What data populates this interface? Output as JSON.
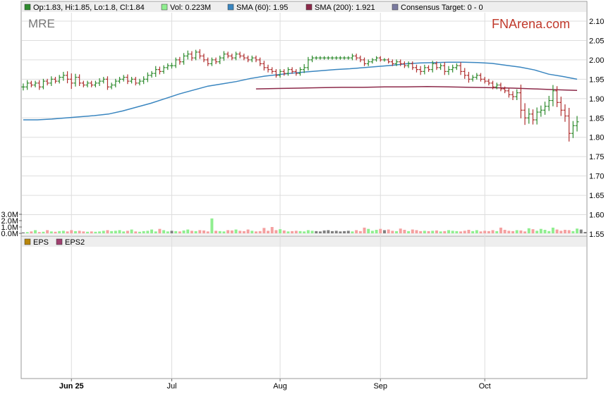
{
  "ticker": "MRE",
  "brand": "FNArena.com",
  "legend": {
    "ohlc": "Op:1.83, Hi:1.85, Lo:1.8, Cl:1.84",
    "vol": "Vol: 0.223M",
    "sma60": "SMA (60): 1.95",
    "sma200": "SMA (200): 1.921",
    "consensus": "Consensus Target: 0 - 0"
  },
  "eps_legend": [
    "EPS",
    "EPS2"
  ],
  "colors": {
    "up": "#2e8b2e",
    "down": "#b03030",
    "sma60": "#3a86c0",
    "sma200": "#8c2a4a",
    "vol_up": "#90ee90",
    "vol_down": "#f4a0a0",
    "vol_neutral": "#808080",
    "consensus": "#7a7aa0",
    "eps": "#b8860b",
    "eps2": "#a04070"
  },
  "chart_data": {
    "type": "ohlc",
    "price_axis": {
      "ticks": [
        "2.10",
        "2.05",
        "2.00",
        "1.95",
        "1.90",
        "1.85",
        "1.80",
        "1.75",
        "1.70",
        "1.65",
        "1.60",
        "1.55"
      ],
      "range": [
        1.55,
        2.1
      ]
    },
    "volume_axis": {
      "ticks": [
        "3.0M",
        "2.0M",
        "1.0M",
        "0.0M"
      ],
      "range": [
        0,
        3.0
      ],
      "unit": "M"
    },
    "x_labels": [
      {
        "label": "Jun 25",
        "index": 12,
        "bold": true
      },
      {
        "label": "Jul",
        "index": 37,
        "bold": false
      },
      {
        "label": "Aug",
        "index": 64,
        "bold": false
      },
      {
        "label": "Sep",
        "index": 89,
        "bold": false
      },
      {
        "label": "Oct",
        "index": 115,
        "bold": false
      }
    ],
    "closes": [
      1.93,
      1.94,
      1.935,
      1.94,
      1.93,
      1.945,
      1.94,
      1.95,
      1.945,
      1.955,
      1.96,
      1.95,
      1.94,
      1.955,
      1.94,
      1.935,
      1.94,
      1.935,
      1.94,
      1.945,
      1.95,
      1.93,
      1.935,
      1.945,
      1.95,
      1.955,
      1.945,
      1.95,
      1.94,
      1.945,
      1.95,
      1.96,
      1.965,
      1.975,
      1.97,
      1.98,
      1.985,
      1.985,
      2.0,
      1.995,
      2.01,
      2.015,
      2.005,
      2.02,
      2.01,
      2.0,
      1.99,
      2.0,
      1.995,
      2.005,
      2.015,
      2.01,
      2.005,
      2.015,
      2.01,
      2.005,
      2.0,
      2.005,
      2.0,
      1.99,
      1.98,
      1.975,
      1.97,
      1.96,
      1.97,
      1.965,
      1.975,
      1.97,
      1.965,
      1.975,
      1.98,
      2.0,
      2.005,
      2.005,
      2.005,
      2.005,
      2.005,
      2.005,
      2.005,
      2.005,
      2.005,
      2.005,
      2.01,
      2.005,
      2.0,
      1.99,
      1.995,
      2.0,
      2.005,
      2.0,
      2.0,
      1.995,
      1.99,
      1.995,
      1.99,
      1.985,
      1.99,
      1.98,
      1.975,
      1.97,
      1.98,
      1.975,
      1.99,
      1.98,
      1.985,
      1.97,
      1.975,
      1.98,
      1.985,
      1.97,
      1.96,
      1.95,
      1.955,
      1.96,
      1.95,
      1.945,
      1.94,
      1.93,
      1.935,
      1.925,
      1.92,
      1.91,
      1.905,
      1.915,
      1.87,
      1.85,
      1.86,
      1.845,
      1.865,
      1.87,
      1.88,
      1.895,
      1.92,
      1.89,
      1.87,
      1.855,
      1.81,
      1.83,
      1.84
    ],
    "ranges": [
      0.03,
      0.025,
      0.02,
      0.02,
      0.025,
      0.02,
      0.02,
      0.025,
      0.02,
      0.02,
      0.03,
      0.035,
      0.05,
      0.03,
      0.025,
      0.02,
      0.02,
      0.02,
      0.02,
      0.025,
      0.02,
      0.025,
      0.02,
      0.02,
      0.02,
      0.02,
      0.025,
      0.02,
      0.02,
      0.02,
      0.025,
      0.025,
      0.02,
      0.03,
      0.025,
      0.02,
      0.02,
      0.025,
      0.02,
      0.025,
      0.025,
      0.03,
      0.025,
      0.02,
      0.025,
      0.02,
      0.02,
      0.02,
      0.02,
      0.02,
      0.025,
      0.02,
      0.02,
      0.02,
      0.02,
      0.02,
      0.02,
      0.02,
      0.02,
      0.02,
      0.025,
      0.025,
      0.02,
      0.02,
      0.02,
      0.02,
      0.02,
      0.02,
      0.02,
      0.02,
      0.03,
      0.025,
      0.02,
      0.015,
      0.015,
      0.015,
      0.015,
      0.015,
      0.015,
      0.015,
      0.015,
      0.015,
      0.02,
      0.02,
      0.02,
      0.02,
      0.02,
      0.015,
      0.015,
      0.015,
      0.015,
      0.015,
      0.02,
      0.02,
      0.02,
      0.02,
      0.02,
      0.02,
      0.025,
      0.03,
      0.025,
      0.02,
      0.025,
      0.02,
      0.02,
      0.03,
      0.03,
      0.025,
      0.02,
      0.03,
      0.03,
      0.03,
      0.02,
      0.02,
      0.02,
      0.02,
      0.02,
      0.02,
      0.02,
      0.02,
      0.02,
      0.025,
      0.03,
      0.03,
      0.07,
      0.06,
      0.05,
      0.04,
      0.04,
      0.04,
      0.04,
      0.04,
      0.05,
      0.04,
      0.05,
      0.05,
      0.07,
      0.04,
      0.05
    ],
    "volumes": [
      0.15,
      0.2,
      0.3,
      0.5,
      0.2,
      0.25,
      0.5,
      0.3,
      0.25,
      0.35,
      0.4,
      0.3,
      0.5,
      0.35,
      0.4,
      0.3,
      0.25,
      0.3,
      0.25,
      0.3,
      0.4,
      0.5,
      0.35,
      0.4,
      0.5,
      0.3,
      0.4,
      0.6,
      0.3,
      0.25,
      0.35,
      0.4,
      0.6,
      0.3,
      0.7,
      0.5,
      0.3,
      0.4,
      0.35,
      0.3,
      0.45,
      0.6,
      0.4,
      0.35,
      0.5,
      0.45,
      0.3,
      2.35,
      0.4,
      0.35,
      0.3,
      0.5,
      0.45,
      0.6,
      0.4,
      0.35,
      0.6,
      0.4,
      0.3,
      0.35,
      0.85,
      0.4,
      1.0,
      0.5,
      0.65,
      0.45,
      0.3,
      0.35,
      0.4,
      0.35,
      0.3,
      0.5,
      0.4,
      0.35,
      0.3,
      0.45,
      0.5,
      0.35,
      0.4,
      0.3,
      0.35,
      0.4,
      0.3,
      0.5,
      0.35,
      0.9,
      0.7,
      0.4,
      0.55,
      0.7,
      0.5,
      0.6,
      0.4,
      0.35,
      0.75,
      0.55,
      0.35,
      0.6,
      0.5,
      0.35,
      0.4,
      0.35,
      0.4,
      0.45,
      0.3,
      0.35,
      0.5,
      0.4,
      0.35,
      0.3,
      0.4,
      0.55,
      0.35,
      0.5,
      0.3,
      0.4,
      0.35,
      0.5,
      0.35,
      0.9,
      0.55,
      0.4,
      0.35,
      0.5,
      0.45,
      0.3,
      0.8,
      0.65,
      0.4,
      0.7,
      0.55,
      0.35,
      0.9,
      0.6,
      0.4,
      0.55,
      0.5,
      0.35,
      0.75,
      0.6,
      0.22
    ],
    "sma60": [
      1.845,
      1.845,
      1.847,
      1.85,
      1.853,
      1.856,
      1.86,
      1.868,
      1.878,
      1.888,
      1.9,
      1.912,
      1.922,
      1.932,
      1.938,
      1.944,
      1.952,
      1.958,
      1.962,
      1.966,
      1.969,
      1.972,
      1.975,
      1.977,
      1.98,
      1.983,
      1.986,
      1.99,
      1.992,
      1.993,
      1.994,
      1.994,
      1.993,
      1.991,
      1.986,
      1.981,
      1.974,
      1.963,
      1.957,
      1.95
    ],
    "sma200": [
      1.925,
      1.926,
      1.927,
      1.928,
      1.929,
      1.929,
      1.93,
      1.93,
      1.931,
      1.93,
      1.929,
      1.928,
      1.927,
      1.925,
      1.923,
      1.921
    ]
  }
}
